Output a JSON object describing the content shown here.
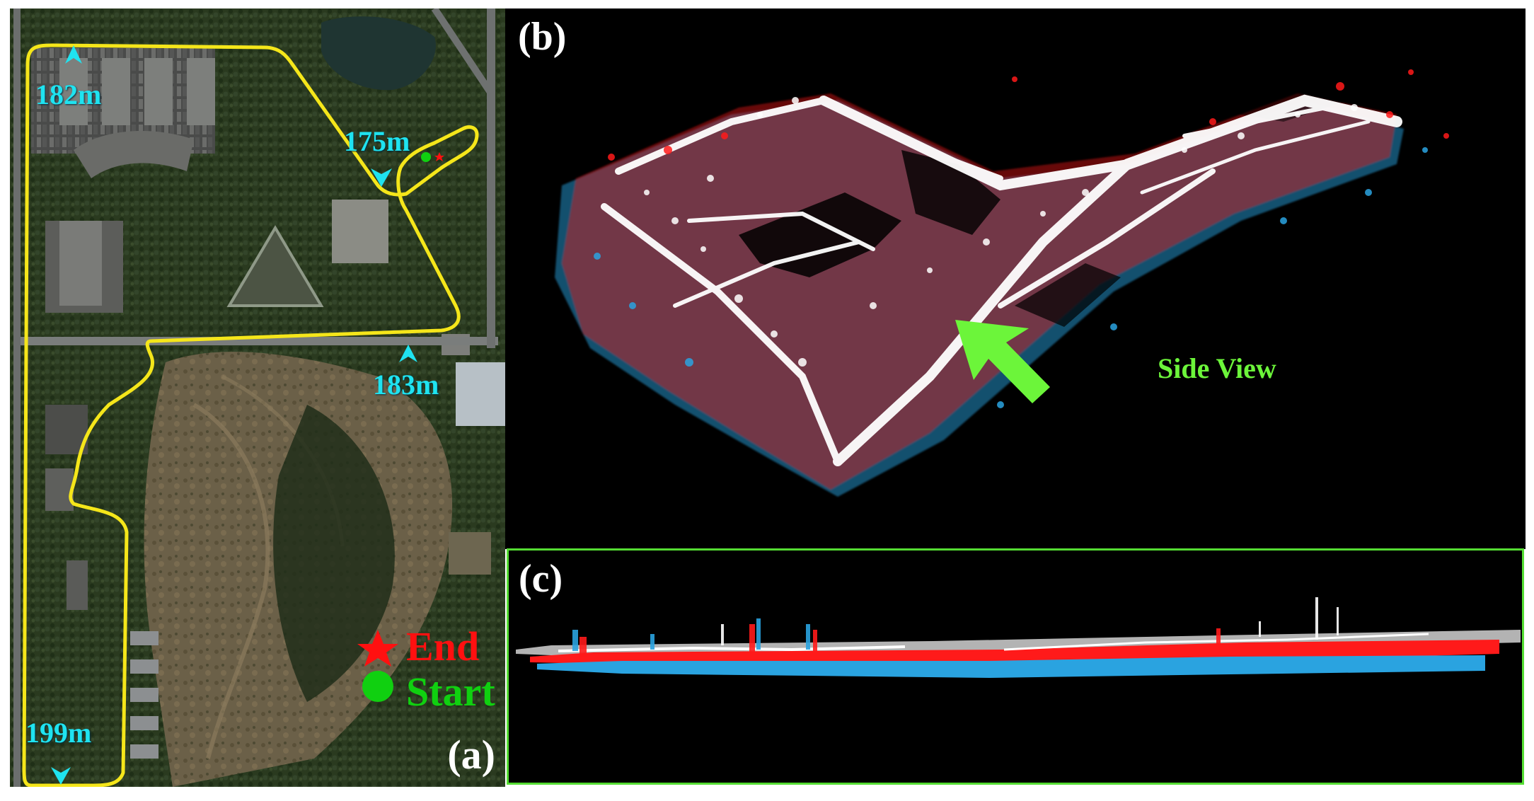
{
  "panel_a": {
    "label": "(a)",
    "waypoints": [
      {
        "id": "wp-182",
        "text": "182m"
      },
      {
        "id": "wp-175",
        "text": "175m"
      },
      {
        "id": "wp-183",
        "text": "183m"
      },
      {
        "id": "wp-199",
        "text": "199m"
      }
    ],
    "legend": {
      "end_label": "End",
      "start_label": "Start",
      "end_color": "#ff1010",
      "start_color": "#10d010",
      "end_icon": "star-icon",
      "start_icon": "circle-icon"
    },
    "trajectory_color": "#f5e61a",
    "waypoint_color": "#1fe3f0"
  },
  "panel_b": {
    "label": "(b)",
    "side_view_label": "Side View",
    "arrow_color": "#6cf53a",
    "cloud_colors": [
      "#ff1a1a",
      "#2aa3e0",
      "#ffffff"
    ]
  },
  "panel_c": {
    "label": "(c)",
    "border_color": "#55dd33"
  }
}
